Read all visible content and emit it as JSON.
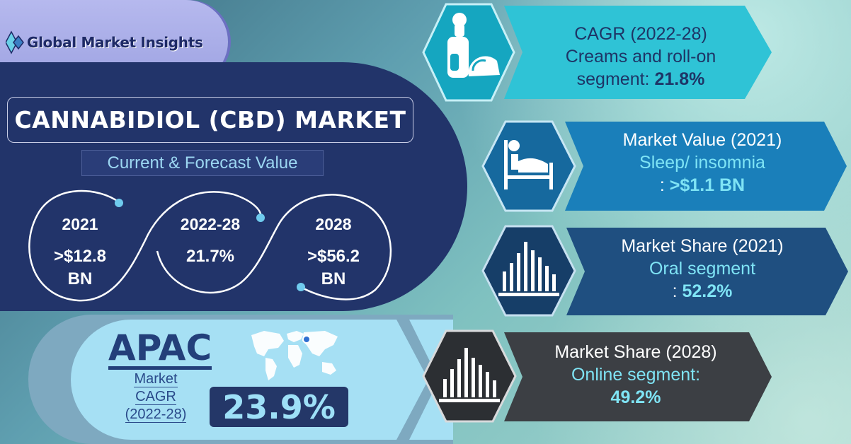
{
  "brand": {
    "logo_text": "Global Market Insights"
  },
  "header": {
    "title": "CANNABIDIOL (CBD) MARKET",
    "subtitle": "Current & Forecast Value"
  },
  "stats": [
    {
      "year": "2021",
      "value_line1": ">$12.8",
      "value_line2": "BN"
    },
    {
      "year": "2022-28",
      "value_line1": "21.7%",
      "value_line2": ""
    },
    {
      "year": "2028",
      "value_line1": ">$56.2",
      "value_line2": "BN"
    }
  ],
  "apac": {
    "title": "APAC",
    "line1": "Market",
    "line2": "CAGR",
    "line3": "(2022-28)",
    "value": "23.9%"
  },
  "cards": [
    {
      "icon": "cream-rollon-icon",
      "heading": "CAGR (2022-28)",
      "line1": "Creams and roll-on",
      "line2_prefix": "segment: ",
      "line2_value": "21.8%",
      "color": "#2fc3d6"
    },
    {
      "icon": "bed-patient-icon",
      "heading": "Market Value (2021)",
      "line1": "Sleep/ insomnia",
      "line2_prefix": ": ",
      "line2_value": ">$1.1 BN",
      "color": "#1a7fba"
    },
    {
      "icon": "bar-chart-icon",
      "heading": "Market Share (2021)",
      "line1": "Oral segment",
      "line2_prefix": ": ",
      "line2_value": "52.2%",
      "color": "#1f4f80"
    },
    {
      "icon": "bar-chart-icon",
      "heading": "Market Share (2028)",
      "line1": "Online segment:",
      "line2_prefix": "",
      "line2_value": "49.2%",
      "color": "#3c3f44"
    }
  ],
  "colors": {
    "navy": "#22346a",
    "light_blue": "#a6e0f4",
    "accent_cyan": "#5fd0ef"
  }
}
